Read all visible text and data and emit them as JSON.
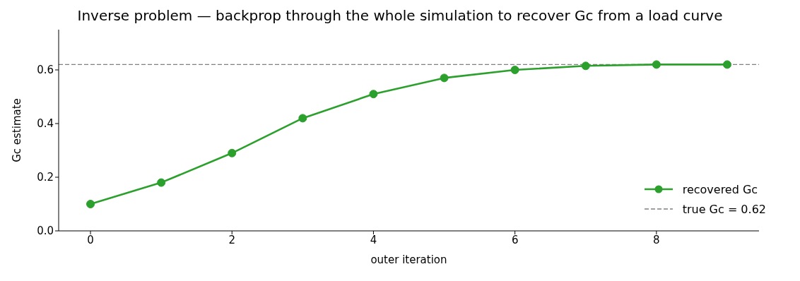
{
  "chart_data": {
    "type": "line",
    "title": "Inverse problem — backprop through the whole simulation to recover Gc from a load curve",
    "xlabel": "outer iteration",
    "ylabel": "Gc estimate",
    "x": [
      0,
      1,
      2,
      3,
      4,
      5,
      6,
      7,
      8,
      9
    ],
    "series": [
      {
        "name": "recovered Gc",
        "color": "#2ca02c",
        "values": [
          0.1,
          0.18,
          0.29,
          0.42,
          0.51,
          0.57,
          0.6,
          0.615,
          0.62,
          0.62
        ]
      }
    ],
    "ref_lines": [
      {
        "axis": "y",
        "value": 0.62,
        "label": "true Gc = 0.62",
        "color": "#808080",
        "line_style": "dashed"
      }
    ],
    "xlim": [
      -0.45,
      9.45
    ],
    "xticks": [
      0,
      2,
      4,
      6,
      8
    ],
    "ylim": [
      0,
      0.75
    ],
    "yticks": [
      {
        "value": 0,
        "label": "0.0"
      },
      {
        "value": 0.2,
        "label": "0.2"
      },
      {
        "value": 0.4,
        "label": "0.4"
      },
      {
        "value": 0.6,
        "label": "0.6"
      }
    ],
    "grid": false,
    "legend": "bottom right",
    "marker": "circle",
    "line_style": "solid"
  }
}
